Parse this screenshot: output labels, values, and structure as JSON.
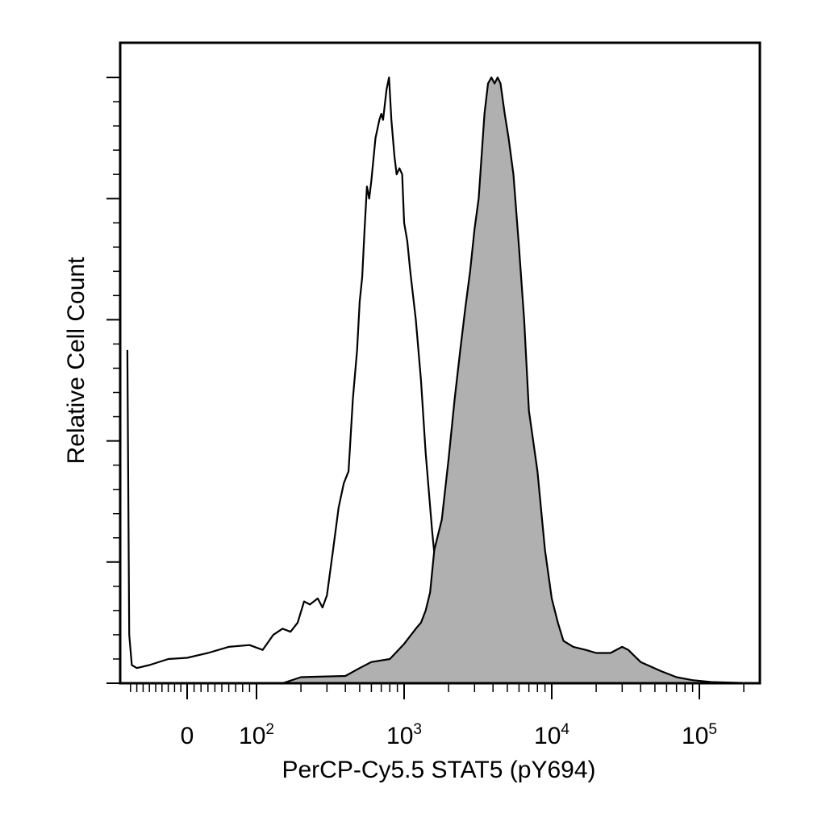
{
  "chart_data": {
    "type": "area",
    "title": "",
    "xlabel": "PerCP-Cy5.5 STAT5 (pY694)",
    "ylabel": "Relative Cell Count",
    "x_scale": "biexponential",
    "x_ticks": [
      {
        "base": "0",
        "exp": "",
        "value": 0
      },
      {
        "base": "10",
        "exp": "2",
        "value": 100
      },
      {
        "base": "10",
        "exp": "3",
        "value": 1000
      },
      {
        "base": "10",
        "exp": "4",
        "value": 10000
      },
      {
        "base": "10",
        "exp": "5",
        "value": 100000
      }
    ],
    "xlim": [
      -100,
      250000
    ],
    "ylim": [
      0,
      100
    ],
    "grid": false,
    "legend": "none",
    "series": [
      {
        "style": "outline",
        "color": "#000000",
        "points": [
          [
            -95,
            55
          ],
          [
            -92,
            8
          ],
          [
            -88,
            3
          ],
          [
            -80,
            2.5
          ],
          [
            -60,
            3
          ],
          [
            -30,
            4
          ],
          [
            0,
            4.2
          ],
          [
            30,
            5
          ],
          [
            60,
            6
          ],
          [
            90,
            6.3
          ],
          [
            110,
            5.5
          ],
          [
            130,
            8
          ],
          [
            150,
            9
          ],
          [
            170,
            8.5
          ],
          [
            190,
            10
          ],
          [
            210,
            13.5
          ],
          [
            230,
            13
          ],
          [
            260,
            14
          ],
          [
            280,
            12.5
          ],
          [
            300,
            14.5
          ],
          [
            330,
            22
          ],
          [
            360,
            29
          ],
          [
            390,
            33
          ],
          [
            420,
            35
          ],
          [
            450,
            47
          ],
          [
            480,
            55
          ],
          [
            500,
            63
          ],
          [
            520,
            67
          ],
          [
            540,
            75
          ],
          [
            560,
            82
          ],
          [
            580,
            80
          ],
          [
            600,
            83
          ],
          [
            640,
            90
          ],
          [
            680,
            93
          ],
          [
            700,
            94
          ],
          [
            720,
            93
          ],
          [
            760,
            98
          ],
          [
            790,
            100
          ],
          [
            820,
            93
          ],
          [
            860,
            87
          ],
          [
            890,
            84
          ],
          [
            930,
            85
          ],
          [
            970,
            84
          ],
          [
            1000,
            76
          ],
          [
            1050,
            73
          ],
          [
            1100,
            68
          ],
          [
            1200,
            60
          ],
          [
            1300,
            50
          ],
          [
            1400,
            38
          ],
          [
            1550,
            25
          ],
          [
            1700,
            15
          ],
          [
            1850,
            7
          ],
          [
            2000,
            3.5
          ],
          [
            2200,
            1.5
          ],
          [
            2500,
            0.8
          ],
          [
            3000,
            0.5
          ],
          [
            5000,
            0.3
          ],
          [
            10000,
            0.2
          ],
          [
            50000,
            0.1
          ],
          [
            230000,
            0
          ]
        ]
      },
      {
        "style": "filled",
        "color": "#b0b0b0",
        "points": [
          [
            150,
            0
          ],
          [
            200,
            1
          ],
          [
            400,
            1.2
          ],
          [
            500,
            2.5
          ],
          [
            600,
            3.5
          ],
          [
            800,
            4
          ],
          [
            1000,
            6.5
          ],
          [
            1200,
            9
          ],
          [
            1300,
            10
          ],
          [
            1400,
            12
          ],
          [
            1500,
            15
          ],
          [
            1600,
            22
          ],
          [
            1800,
            27
          ],
          [
            2000,
            37
          ],
          [
            2200,
            47
          ],
          [
            2400,
            55
          ],
          [
            2600,
            62
          ],
          [
            2800,
            68
          ],
          [
            3000,
            75
          ],
          [
            3200,
            80
          ],
          [
            3500,
            94
          ],
          [
            3700,
            99
          ],
          [
            3900,
            100
          ],
          [
            4100,
            99
          ],
          [
            4300,
            100
          ],
          [
            4500,
            99
          ],
          [
            4800,
            94
          ],
          [
            5100,
            90
          ],
          [
            5500,
            84
          ],
          [
            6000,
            72
          ],
          [
            6500,
            60
          ],
          [
            7000,
            45
          ],
          [
            8000,
            35
          ],
          [
            9000,
            22
          ],
          [
            10000,
            14
          ],
          [
            11000,
            10
          ],
          [
            12000,
            7
          ],
          [
            14000,
            6
          ],
          [
            17000,
            5.5
          ],
          [
            20000,
            5
          ],
          [
            25000,
            5
          ],
          [
            30000,
            6
          ],
          [
            33000,
            5.5
          ],
          [
            40000,
            3.5
          ],
          [
            55000,
            2
          ],
          [
            70000,
            1
          ],
          [
            90000,
            0.5
          ],
          [
            120000,
            0.2
          ],
          [
            230000,
            0
          ]
        ]
      }
    ]
  }
}
